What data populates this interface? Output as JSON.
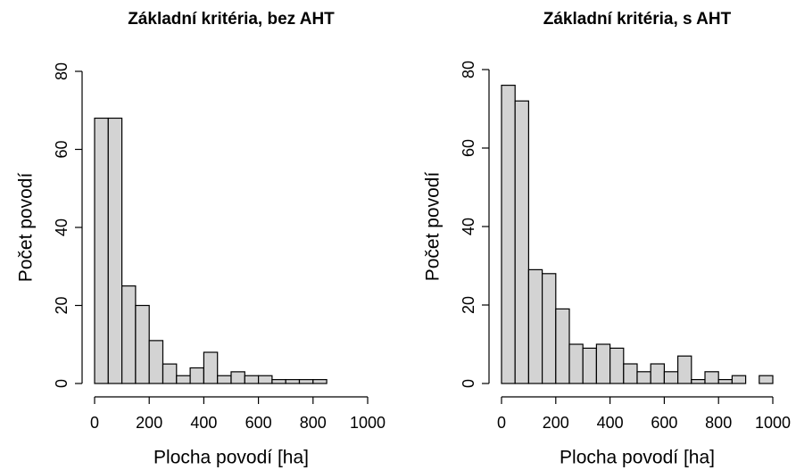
{
  "chart_data": [
    {
      "type": "histogram",
      "title": "Základní kritéria, bez AHT",
      "xlabel": "Plocha povodí [ha]",
      "ylabel": "Počet povodí",
      "bins": [
        0,
        50,
        100,
        150,
        200,
        250,
        300,
        350,
        400,
        450,
        500,
        550,
        600,
        650,
        700,
        750,
        800,
        850,
        900,
        950,
        1000
      ],
      "counts": [
        68,
        68,
        25,
        20,
        11,
        5,
        2,
        4,
        8,
        2,
        3,
        2,
        2,
        1,
        1,
        1,
        1,
        0,
        0,
        0
      ],
      "color": "#d3d3d3",
      "xlim": [
        0,
        1000
      ],
      "xticks": [
        0,
        200,
        400,
        600,
        800,
        1000
      ],
      "ylim": [
        0,
        80
      ],
      "yticks": [
        0,
        20,
        40,
        60,
        80
      ]
    },
    {
      "type": "histogram",
      "title": "Základní kritéria, s AHT",
      "xlabel": "Plocha povodí [ha]",
      "ylabel": "Počet povodí",
      "bins": [
        0,
        50,
        100,
        150,
        200,
        250,
        300,
        350,
        400,
        450,
        500,
        550,
        600,
        650,
        700,
        750,
        800,
        850,
        900,
        950,
        1000
      ],
      "counts": [
        76,
        72,
        29,
        28,
        19,
        10,
        9,
        10,
        9,
        5,
        3,
        5,
        3,
        7,
        1,
        3,
        1,
        2,
        0,
        2
      ],
      "color": "#d3d3d3",
      "xlim": [
        0,
        1000
      ],
      "xticks": [
        0,
        200,
        400,
        600,
        800,
        1000
      ],
      "ylim": [
        0,
        80
      ],
      "yticks": [
        0,
        20,
        40,
        60,
        80
      ]
    }
  ]
}
